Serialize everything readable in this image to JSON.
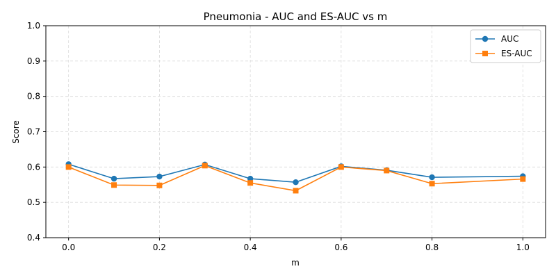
{
  "chart_data": {
    "type": "line",
    "title": "Pneumonia - AUC and ES-AUC vs m",
    "xlabel": "m",
    "ylabel": "Score",
    "xlim": [
      -0.05,
      1.05
    ],
    "ylim": [
      0.4,
      1.0
    ],
    "xticks": [
      0.0,
      0.2,
      0.4,
      0.6,
      0.8,
      1.0
    ],
    "xtick_labels": [
      "0.0",
      "0.2",
      "0.4",
      "0.6",
      "0.8",
      "1.0"
    ],
    "yticks": [
      0.4,
      0.5,
      0.6,
      0.7,
      0.8,
      0.9,
      1.0
    ],
    "ytick_labels": [
      "0.4",
      "0.5",
      "0.6",
      "0.7",
      "0.8",
      "0.9",
      "1.0"
    ],
    "grid": true,
    "legend_position": "top-right",
    "x": [
      0.0,
      0.1,
      0.2,
      0.3,
      0.4,
      0.5,
      0.6,
      0.7,
      0.8,
      1.0
    ],
    "series": [
      {
        "name": "AUC",
        "color": "#1f77b4",
        "marker": "circle",
        "values": [
          0.608,
          0.567,
          0.573,
          0.607,
          0.567,
          0.557,
          0.602,
          0.591,
          0.571,
          0.574
        ]
      },
      {
        "name": "ES-AUC",
        "color": "#ff7f0e",
        "marker": "square",
        "values": [
          0.6,
          0.549,
          0.548,
          0.604,
          0.555,
          0.533,
          0.6,
          0.59,
          0.553,
          0.566
        ]
      }
    ]
  }
}
